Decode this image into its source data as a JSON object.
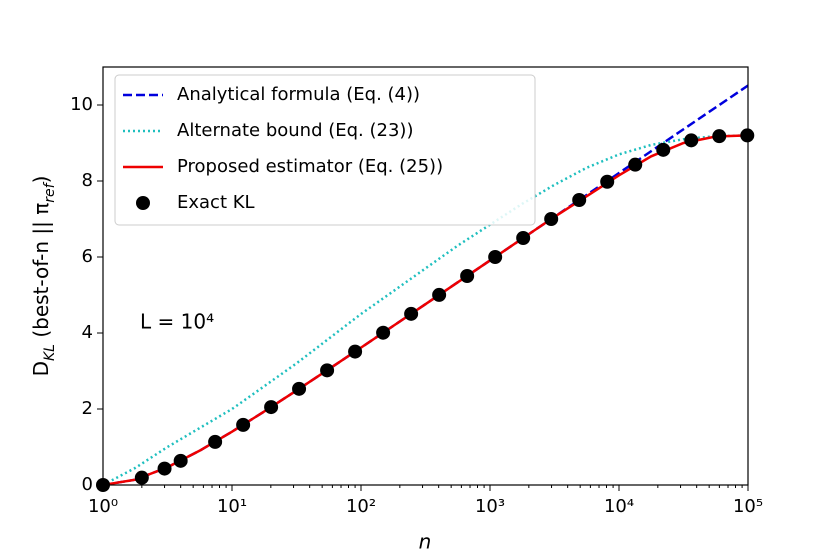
{
  "chart_data": {
    "type": "line",
    "xlabel": "n",
    "ylabel": [
      {
        "text": "D"
      },
      {
        "text": "KL",
        "sub": true
      },
      {
        "text": " (best-of-n || π"
      },
      {
        "text": "ref",
        "sub": true
      },
      {
        "text": ")"
      }
    ],
    "annotation": "L = 10⁴",
    "xscale": "log",
    "xlim": [
      1,
      100000
    ],
    "ylim": [
      0,
      11
    ],
    "xticks": [
      {
        "value": 1,
        "label": "10⁰"
      },
      {
        "value": 10,
        "label": "10¹"
      },
      {
        "value": 100,
        "label": "10²"
      },
      {
        "value": 1000,
        "label": "10³"
      },
      {
        "value": 10000,
        "label": "10⁴"
      },
      {
        "value": 100000,
        "label": "10⁵"
      }
    ],
    "yticks": [
      0,
      2,
      4,
      6,
      8,
      10
    ],
    "legend": "upper left",
    "series": [
      {
        "name": "Analytical formula (Eq. (4))",
        "color": "#0000dd",
        "style": "dashed",
        "x": [
          1,
          1.78,
          3.16,
          5.62,
          10,
          17.8,
          31.6,
          56.2,
          100,
          178,
          316,
          562,
          1000,
          1778,
          3162,
          5623,
          10000,
          17783,
          31623,
          56234,
          100000
        ],
        "values": [
          0,
          0.139,
          0.467,
          0.904,
          1.403,
          1.935,
          2.486,
          3.047,
          3.615,
          4.188,
          4.759,
          5.334,
          5.909,
          6.484,
          7.059,
          7.635,
          8.21,
          8.786,
          9.362,
          9.937,
          10.513
        ]
      },
      {
        "name": "Alternate bound (Eq. (23))",
        "color": "#1fbfbf",
        "style": "dotted",
        "x": [
          1,
          1.78,
          3.16,
          5.62,
          10,
          17.8,
          31.6,
          56.2,
          100,
          178,
          316,
          562,
          1000,
          1778,
          3162,
          5623,
          10000,
          17783,
          31623,
          56234,
          100000
        ],
        "values": [
          0,
          0.45,
          1.0,
          1.5,
          2.0,
          2.6,
          3.2,
          3.85,
          4.5,
          5.1,
          5.7,
          6.3,
          6.85,
          7.4,
          7.9,
          8.35,
          8.7,
          8.95,
          9.1,
          9.18,
          9.2
        ]
      },
      {
        "name": "Proposed estimator (Eq. (25))",
        "color": "#ee0000",
        "style": "solid",
        "x": [
          1,
          1.78,
          3.16,
          5.62,
          10,
          17.8,
          31.6,
          56.2,
          100,
          178,
          316,
          562,
          1000,
          1778,
          3162,
          5623,
          10000,
          17783,
          31623,
          56234,
          100000
        ],
        "values": [
          0,
          0.139,
          0.467,
          0.904,
          1.403,
          1.935,
          2.486,
          3.047,
          3.615,
          4.188,
          4.759,
          5.334,
          5.909,
          6.484,
          7.059,
          7.6,
          8.15,
          8.65,
          9.0,
          9.17,
          9.2
        ]
      },
      {
        "name": "Exact KL",
        "color": "#000000",
        "style": "markers",
        "x": [
          1,
          2,
          3,
          4,
          7.4,
          12.2,
          20.1,
          33.1,
          54.6,
          90,
          148.4,
          244.7,
          403.4,
          665.1,
          1096.6,
          1808,
          2981,
          4914.8,
          8103.1,
          13359.7,
          22026.5,
          36315.5,
          59874.1,
          98715.8
        ],
        "values": [
          0,
          0.193,
          0.432,
          0.636,
          1.135,
          1.582,
          2.05,
          2.53,
          3.018,
          3.511,
          4.007,
          4.504,
          5.002,
          5.5,
          6.0,
          6.5,
          7.0,
          7.5,
          7.98,
          8.43,
          8.82,
          9.07,
          9.18,
          9.2
        ]
      }
    ]
  }
}
